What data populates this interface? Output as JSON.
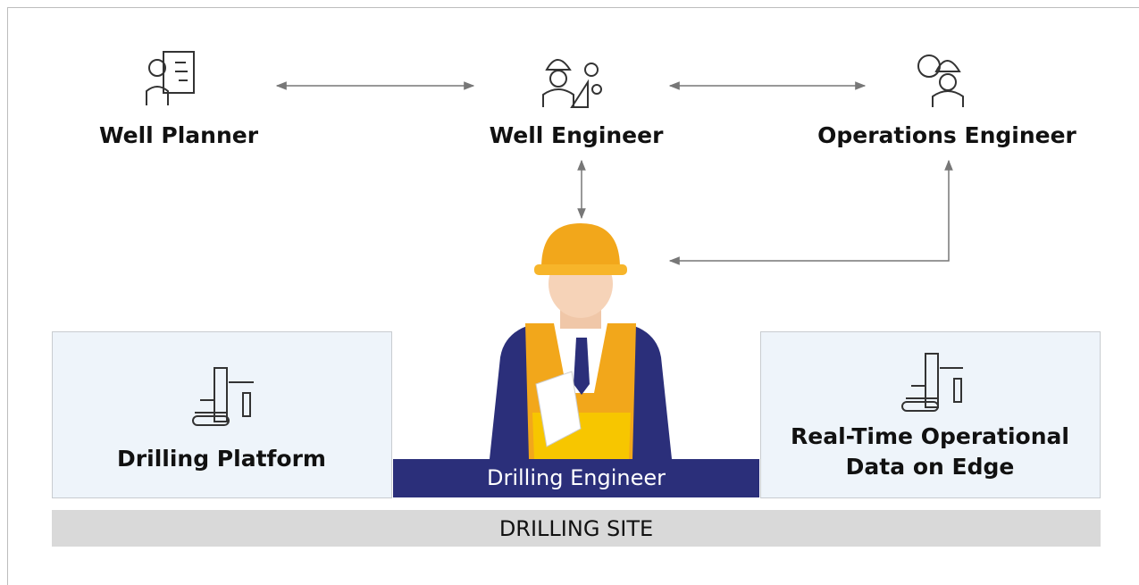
{
  "roles": [
    {
      "label": "Well Planner"
    },
    {
      "label": "Well Engineer"
    },
    {
      "label": "Operations Engineer"
    }
  ],
  "boxes": [
    {
      "label": "Drilling Platform"
    },
    {
      "label": "Real-Time Operational Data on Edge"
    }
  ],
  "center": {
    "label": "Drilling Engineer"
  },
  "site": {
    "label": "DRILLING SITE"
  }
}
